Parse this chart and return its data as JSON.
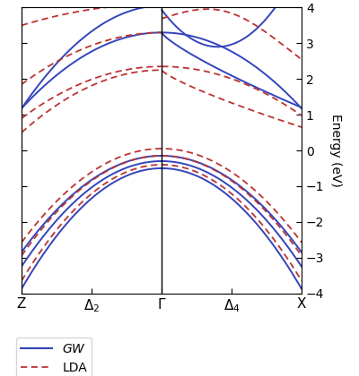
{
  "ylabel": "Energy (eV)",
  "ylim": [
    -4,
    4
  ],
  "yticks": [
    -4,
    -3,
    -2,
    -1,
    0,
    1,
    2,
    3,
    4
  ],
  "xtick_positions": [
    0,
    0.25,
    0.5,
    0.75,
    1.0
  ],
  "xtick_labels": [
    "Z",
    "$\\Delta_2$",
    "$\\Gamma$",
    "$\\Delta_4$",
    "X"
  ],
  "gw_color": "#3344bb",
  "lda_color": "#bb3333",
  "n_points": 500
}
